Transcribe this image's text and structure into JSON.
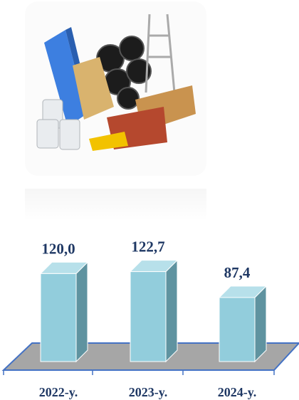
{
  "chart_data": {
    "type": "bar",
    "categories": [
      "2022-y.",
      "2023-y.",
      "2024-y."
    ],
    "values": [
      120.0,
      122.7,
      87.4
    ],
    "value_labels": [
      "120,0",
      "122,7",
      "87,4"
    ],
    "color": "#92cddc"
  }
}
